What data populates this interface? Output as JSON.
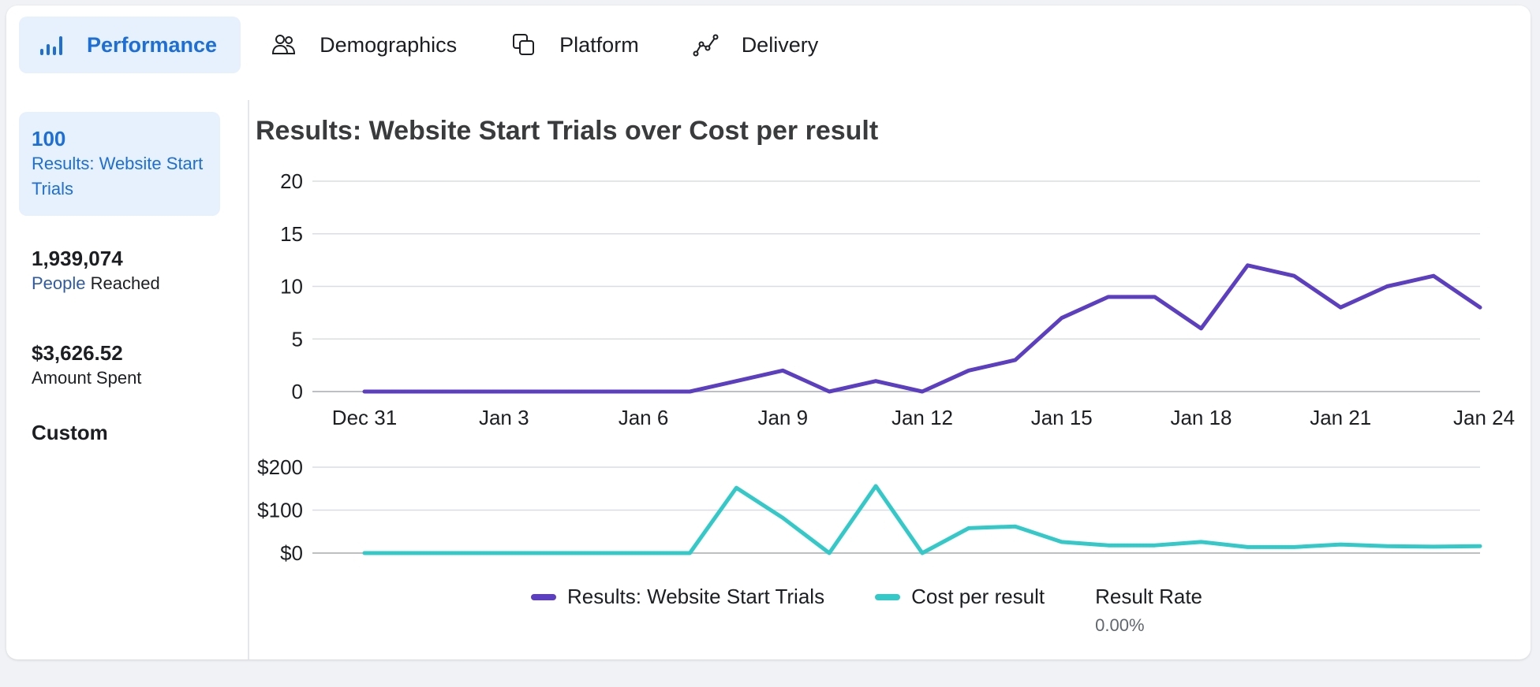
{
  "tabs": [
    {
      "label": "Performance",
      "icon": "bar-chart-icon",
      "active": true
    },
    {
      "label": "Demographics",
      "icon": "people-icon",
      "active": false
    },
    {
      "label": "Platform",
      "icon": "platform-icon",
      "active": false
    },
    {
      "label": "Delivery",
      "icon": "delivery-icon",
      "active": false
    }
  ],
  "sidebar": {
    "metrics": [
      {
        "value": "100",
        "label": "Results: Website Start Trials"
      },
      {
        "value": "1,939,074",
        "label_part1": "People",
        "label_part2": " Reached"
      },
      {
        "value": "$3,626.52",
        "label": "Amount Spent"
      }
    ],
    "custom_label": "Custom"
  },
  "colors": {
    "accent": "#1b6fd6",
    "results": "#5c3ec2",
    "cost": "#33c9c9"
  },
  "chart": {
    "title": "Results: Website Start Trials over Cost per result"
  },
  "legend": {
    "results_label": "Results: Website Start Trials",
    "cost_label": "Cost per result",
    "rate_label": "Result Rate",
    "rate_value": "0.00%"
  },
  "chart_data": [
    {
      "type": "line",
      "title": "Results: Website Start Trials over Cost per result",
      "series": [
        {
          "name": "Results: Website Start Trials",
          "values": [
            0,
            0,
            0,
            0,
            0,
            0,
            0,
            0,
            1,
            2,
            0,
            1,
            0,
            2,
            3,
            7,
            9,
            9,
            6,
            12,
            11,
            8,
            10,
            11,
            8
          ]
        }
      ],
      "x": [
        0,
        1,
        2,
        3,
        4,
        5,
        6,
        7,
        8,
        9,
        10,
        11,
        12,
        13,
        14,
        15,
        16,
        17,
        18,
        19,
        20,
        21,
        22,
        23,
        24
      ],
      "tick_x": [
        0,
        3,
        6,
        9,
        12,
        15,
        18,
        21,
        24
      ],
      "tick_labels": [
        "Dec 31",
        "Jan 3",
        "Jan 6",
        "Jan 9",
        "Jan 12",
        "Jan 15",
        "Jan 18",
        "Jan 21",
        "Jan 24"
      ],
      "y_ticks": [
        "0",
        "5",
        "10",
        "15",
        "20"
      ],
      "ylim": [
        0,
        20
      ],
      "grid": true
    },
    {
      "type": "line",
      "series": [
        {
          "name": "Cost per result",
          "values": [
            0,
            0,
            0,
            0,
            0,
            0,
            0,
            0,
            152,
            82,
            0,
            156,
            0,
            58,
            62,
            26,
            18,
            18,
            26,
            14,
            14,
            20,
            16,
            15,
            16
          ]
        }
      ],
      "x": [
        0,
        1,
        2,
        3,
        4,
        5,
        6,
        7,
        8,
        9,
        10,
        11,
        12,
        13,
        14,
        15,
        16,
        17,
        18,
        19,
        20,
        21,
        22,
        23,
        24
      ],
      "y_ticks": [
        "$0",
        "$100",
        "$200"
      ],
      "ylim": [
        0,
        200
      ],
      "grid": true
    }
  ]
}
